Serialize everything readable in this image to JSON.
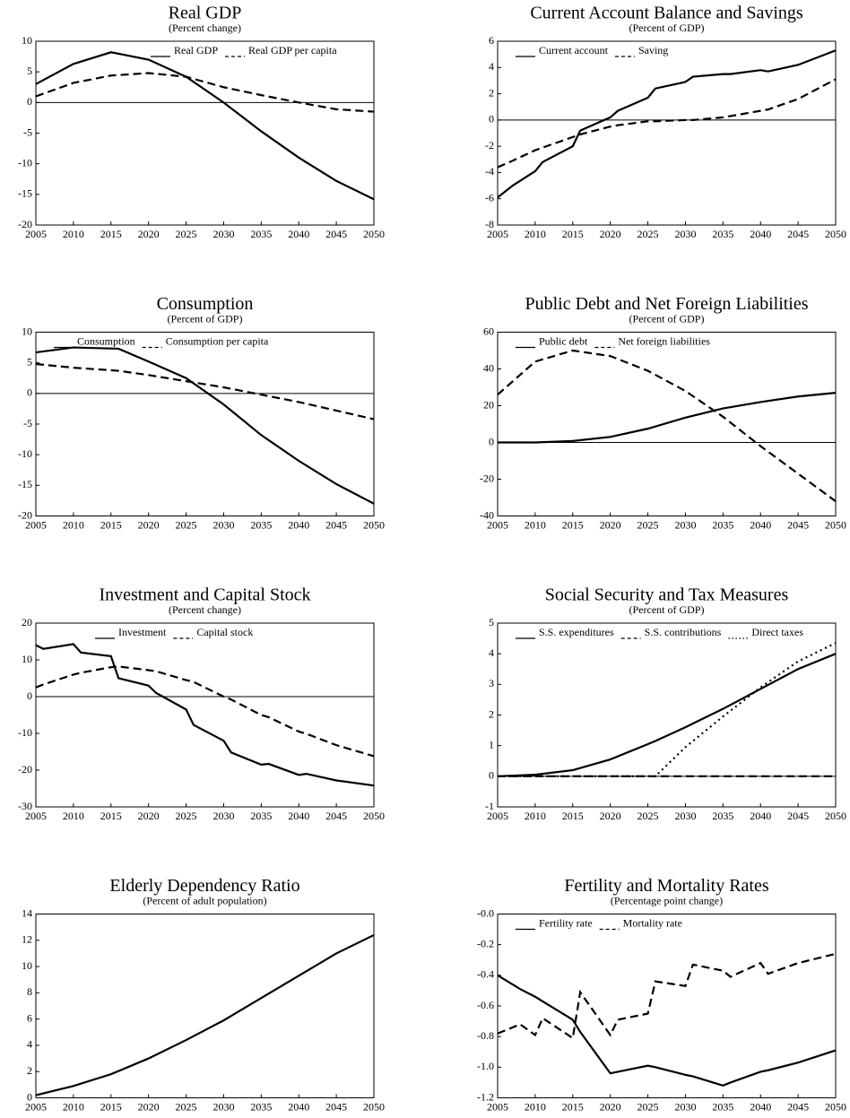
{
  "chart_data": [
    {
      "type": "line",
      "title": "Real GDP",
      "subtitle": "(Percent change)",
      "legend": "upper center",
      "x": [
        2005,
        2010,
        2015,
        2020,
        2025,
        2030,
        2035,
        2040,
        2045,
        2050
      ],
      "series": [
        {
          "name": "Real GDP",
          "color": "#000000",
          "dash": "solid",
          "values": [
            3,
            6.3,
            8.2,
            7,
            4.2,
            0,
            -4.7,
            -9,
            -12.8,
            -15.8
          ]
        },
        {
          "name": "Real GDP per capita",
          "color": "#000000",
          "dash": "dashed",
          "values": [
            1,
            3.2,
            4.4,
            4.8,
            4.2,
            2.5,
            1.2,
            0,
            -1.1,
            -1.5
          ]
        }
      ],
      "xlim": [
        2005,
        2050
      ],
      "xticks": [
        2005,
        2010,
        2015,
        2020,
        2025,
        2030,
        2035,
        2040,
        2045,
        2050
      ],
      "ylim": [
        -20,
        10
      ],
      "yticks": [
        -20,
        -15,
        -10,
        -5,
        0,
        5,
        10
      ]
    },
    {
      "type": "line",
      "title": "Current Account Balance and Savings",
      "subtitle": "(Percent of GDP)",
      "legend": "upper left",
      "x": [
        2005,
        2007,
        2010,
        2011,
        2015,
        2016,
        2020,
        2021,
        2025,
        2026,
        2030,
        2031,
        2035,
        2036,
        2040,
        2041,
        2045,
        2050
      ],
      "series": [
        {
          "name": "Current account",
          "color": "#000000",
          "dash": "solid",
          "values": [
            -5.9,
            -5,
            -3.9,
            -3.2,
            -2,
            -0.8,
            0.2,
            0.7,
            1.7,
            2.4,
            2.9,
            3.3,
            3.5,
            3.5,
            3.8,
            3.7,
            4.2,
            5.3
          ]
        },
        {
          "name": "Saving",
          "color": "#000000",
          "dash": "dashed",
          "values": [
            -3.6,
            -3.1,
            -2.3,
            -2.1,
            -1.3,
            -1.1,
            -0.5,
            -0.4,
            -0.1,
            -0.1,
            0,
            0,
            0.2,
            0.3,
            0.7,
            0.8,
            1.6,
            3.1
          ]
        }
      ],
      "xlim": [
        2005,
        2050
      ],
      "xticks": [
        2005,
        2010,
        2015,
        2020,
        2025,
        2030,
        2035,
        2040,
        2045,
        2050
      ],
      "ylim": [
        -8,
        6
      ],
      "yticks": [
        -8,
        -6,
        -4,
        -2,
        0,
        2,
        4,
        6
      ]
    },
    {
      "type": "line",
      "title": "Consumption",
      "subtitle": "(Percent of GDP)",
      "legend": "upper left",
      "x": [
        2005,
        2010,
        2016,
        2020,
        2025,
        2030,
        2035,
        2040,
        2045,
        2050
      ],
      "series": [
        {
          "name": "Consumption",
          "color": "#000000",
          "dash": "solid",
          "values": [
            6.7,
            7.5,
            7.3,
            5.2,
            2.5,
            -1.8,
            -6.8,
            -11,
            -14.8,
            -18
          ]
        },
        {
          "name": "Consumption per capita",
          "color": "#000000",
          "dash": "dashed",
          "values": [
            4.8,
            4.2,
            3.7,
            3,
            2,
            1,
            -0.2,
            -1.4,
            -2.8,
            -4.2
          ]
        }
      ],
      "xlim": [
        2005,
        2050
      ],
      "xticks": [
        2005,
        2010,
        2015,
        2020,
        2025,
        2030,
        2035,
        2040,
        2045,
        2050
      ],
      "ylim": [
        -20,
        10
      ],
      "yticks": [
        -20,
        -15,
        -10,
        -5,
        0,
        5,
        10
      ]
    },
    {
      "type": "line",
      "title": "Public Debt and Net Foreign Liabilities",
      "subtitle": "(Percent of GDP)",
      "legend": "upper left",
      "x": [
        2005,
        2010,
        2015,
        2020,
        2025,
        2030,
        2035,
        2040,
        2045,
        2050
      ],
      "series": [
        {
          "name": "Public debt",
          "color": "#000000",
          "dash": "solid",
          "values": [
            0,
            0,
            0.8,
            3,
            7.5,
            13.5,
            18.5,
            22,
            25,
            27
          ]
        },
        {
          "name": "Net foreign liabilities",
          "color": "#000000",
          "dash": "dashed",
          "values": [
            26,
            44,
            50,
            47,
            39,
            28,
            14,
            -2,
            -17,
            -32
          ]
        }
      ],
      "xlim": [
        2005,
        2050
      ],
      "xticks": [
        2005,
        2010,
        2015,
        2020,
        2025,
        2030,
        2035,
        2040,
        2045,
        2050
      ],
      "ylim": [
        -40,
        60
      ],
      "yticks": [
        -40,
        -20,
        0,
        20,
        40,
        60
      ]
    },
    {
      "type": "line",
      "title": "Investment and Capital Stock",
      "subtitle": "(Percent change)",
      "legend": "upper center",
      "x": [
        2005,
        2006,
        2010,
        2011,
        2015,
        2016,
        2020,
        2021,
        2025,
        2026,
        2030,
        2031,
        2035,
        2036,
        2040,
        2041,
        2045,
        2050
      ],
      "series": [
        {
          "name": "Investment",
          "color": "#000000",
          "dash": "solid",
          "values": [
            14,
            13,
            14.3,
            12,
            11,
            5,
            3,
            1,
            -3.5,
            -7.7,
            -12,
            -15.2,
            -18.5,
            -18.3,
            -21.3,
            -21,
            -22.8,
            -24.2
          ]
        },
        {
          "name": "Capital stock",
          "color": "#000000",
          "dash": "dashed",
          "values": [
            2.5,
            3.3,
            6,
            6.5,
            8,
            8.2,
            7.2,
            6.9,
            4.5,
            4,
            0,
            -0.8,
            -5,
            -5.6,
            -9.5,
            -10.1,
            -13.2,
            -16.2
          ]
        }
      ],
      "xlim": [
        2005,
        2050
      ],
      "xticks": [
        2005,
        2010,
        2015,
        2020,
        2025,
        2030,
        2035,
        2040,
        2045,
        2050
      ],
      "ylim": [
        -30,
        20
      ],
      "yticks": [
        -30,
        -20,
        -10,
        0,
        10,
        20
      ]
    },
    {
      "type": "line",
      "title": "Social Security and Tax Measures",
      "subtitle": "(Percent of GDP)",
      "legend": "upper left",
      "x": [
        2005,
        2010,
        2015,
        2020,
        2025,
        2026,
        2030,
        2035,
        2040,
        2045,
        2050
      ],
      "series": [
        {
          "name": "S.S. expenditures",
          "color": "#000000",
          "dash": "solid",
          "values": [
            0,
            0.05,
            0.2,
            0.55,
            1.05,
            1.15,
            1.6,
            2.2,
            2.85,
            3.5,
            4
          ]
        },
        {
          "name": "S.S. contributions",
          "color": "#000000",
          "dash": "dashed",
          "values": [
            0,
            0,
            0,
            0,
            0,
            0,
            0,
            0,
            0,
            0,
            0
          ]
        },
        {
          "name": "Direct taxes",
          "color": "#000000",
          "dash": "dotted",
          "values": [
            0,
            0,
            0,
            0,
            0,
            0,
            0.95,
            1.95,
            2.9,
            3.75,
            4.35
          ]
        }
      ],
      "xlim": [
        2005,
        2050
      ],
      "xticks": [
        2005,
        2010,
        2015,
        2020,
        2025,
        2030,
        2035,
        2040,
        2045,
        2050
      ],
      "ylim": [
        -1,
        5
      ],
      "yticks": [
        -1,
        0,
        1,
        2,
        3,
        4,
        5
      ]
    },
    {
      "type": "line",
      "title": "Elderly Dependency Ratio",
      "subtitle": "(Percent of adult population)",
      "x": [
        2005,
        2010,
        2015,
        2020,
        2025,
        2030,
        2035,
        2040,
        2045,
        2050
      ],
      "color": "#000000",
      "values": [
        0.2,
        0.9,
        1.8,
        3,
        4.4,
        5.9,
        7.6,
        9.3,
        11,
        12.4
      ],
      "xlim": [
        2005,
        2050
      ],
      "xticks": [
        2005,
        2010,
        2015,
        2020,
        2025,
        2030,
        2035,
        2040,
        2045,
        2050
      ],
      "ylim": [
        0,
        14
      ],
      "yticks": [
        0,
        2,
        4,
        6,
        8,
        10,
        12,
        14
      ]
    },
    {
      "type": "line",
      "title": "Fertility and Mortality Rates",
      "subtitle": "(Percentage point change)",
      "legend": "upper left",
      "x": [
        2005,
        2008,
        2010,
        2011,
        2015,
        2016,
        2020,
        2021,
        2025,
        2026,
        2030,
        2031,
        2035,
        2036,
        2040,
        2041,
        2045,
        2050
      ],
      "series": [
        {
          "name": "Fertility rate",
          "color": "#000000",
          "dash": "solid",
          "values": [
            -0.4,
            -0.49,
            -0.54,
            -0.57,
            -0.69,
            -0.77,
            -1.04,
            -1.03,
            -0.99,
            -1.0,
            -1.05,
            -1.06,
            -1.12,
            -1.1,
            -1.03,
            -1.02,
            -0.97,
            -0.89
          ]
        },
        {
          "name": "Mortality rate",
          "color": "#000000",
          "dash": "dashed",
          "values": [
            -0.78,
            -0.72,
            -0.79,
            -0.68,
            -0.81,
            -0.51,
            -0.79,
            -0.69,
            -0.65,
            -0.44,
            -0.47,
            -0.33,
            -0.37,
            -0.41,
            -0.32,
            -0.39,
            -0.32,
            -0.26
          ]
        }
      ],
      "xlim": [
        2005,
        2050
      ],
      "xticks": [
        2005,
        2010,
        2015,
        2020,
        2025,
        2030,
        2035,
        2040,
        2045,
        2050
      ],
      "ylim": [
        -1.2,
        0
      ],
      "yticks": [
        -1.2,
        {
          "value": -1.0,
          "label": "-1.0"
        },
        -0.8,
        -0.6,
        -0.4,
        -0.2,
        {
          "value": 0,
          "label": "-0.0"
        }
      ]
    }
  ]
}
